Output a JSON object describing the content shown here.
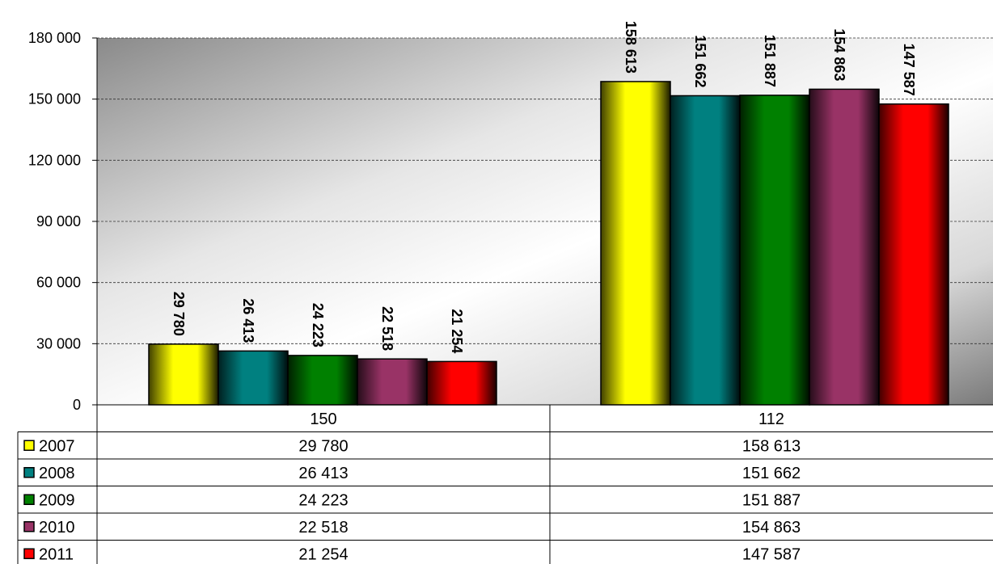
{
  "chart_data": {
    "type": "bar",
    "categories": [
      "150",
      "112"
    ],
    "series": [
      {
        "name": "2007",
        "values": [
          29780,
          158613
        ],
        "labels": [
          "29 780",
          "158 613"
        ],
        "color": "#ffff00"
      },
      {
        "name": "2008",
        "values": [
          26413,
          151662
        ],
        "labels": [
          "26 413",
          "151 662"
        ],
        "color": "#008080"
      },
      {
        "name": "2009",
        "values": [
          24223,
          151887
        ],
        "labels": [
          "24 223",
          "151 887"
        ],
        "color": "#008000"
      },
      {
        "name": "2010",
        "values": [
          22518,
          154863
        ],
        "labels": [
          "22 518",
          "154 863"
        ],
        "color": "#993366"
      },
      {
        "name": "2011",
        "values": [
          21254,
          147587
        ],
        "labels": [
          "21 254",
          "147 587"
        ],
        "color": "#ff0000"
      }
    ],
    "y_ticks": [
      "0",
      "30 000",
      "60 000",
      "90 000",
      "120 000",
      "150 000",
      "180 000"
    ],
    "ylim": [
      0,
      180000
    ],
    "grid": true,
    "legend": "data-table-below",
    "title": "",
    "xlabel": "",
    "ylabel": ""
  }
}
